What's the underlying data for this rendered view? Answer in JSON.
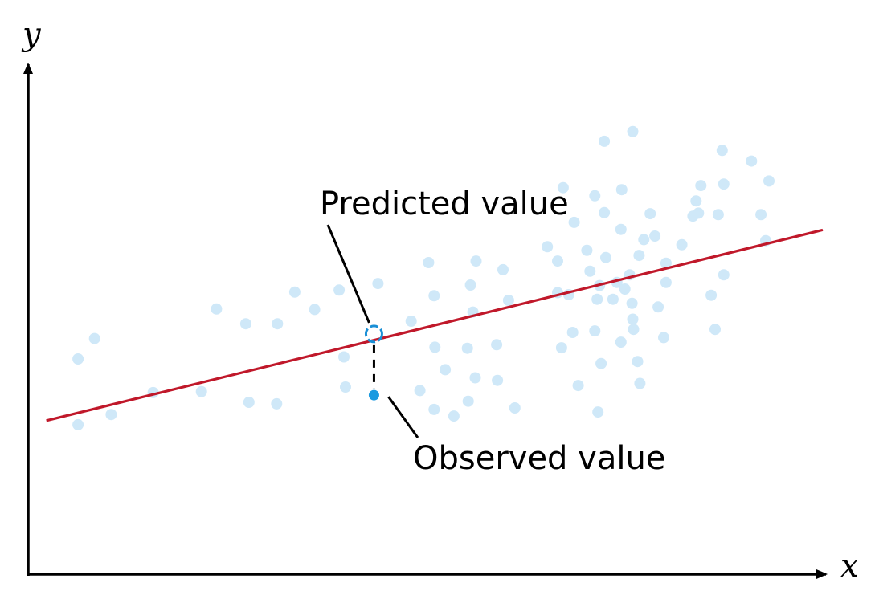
{
  "chart_data": {
    "type": "scatter",
    "title": "",
    "xlabel": "x",
    "ylabel": "y",
    "xlim": [
      0,
      100
    ],
    "ylim": [
      0,
      100
    ],
    "grid": false,
    "colors": {
      "points": "#cfe8f8",
      "fit_line": "#c0182a",
      "observed": "#1a9ae0",
      "predicted_ring": "#1a8fd6",
      "axes": "#000000"
    },
    "points": [
      {
        "x": 6.3,
        "y": 42.2
      },
      {
        "x": 6.3,
        "y": 29.3
      },
      {
        "x": 8.4,
        "y": 46.2
      },
      {
        "x": 10.5,
        "y": 31.3
      },
      {
        "x": 15.8,
        "y": 35.6
      },
      {
        "x": 21.9,
        "y": 35.8
      },
      {
        "x": 23.8,
        "y": 52.0
      },
      {
        "x": 27.5,
        "y": 49.1
      },
      {
        "x": 27.9,
        "y": 33.7
      },
      {
        "x": 31.5,
        "y": 49.1
      },
      {
        "x": 31.4,
        "y": 33.4
      },
      {
        "x": 33.7,
        "y": 55.3
      },
      {
        "x": 36.2,
        "y": 51.9
      },
      {
        "x": 39.3,
        "y": 55.7
      },
      {
        "x": 39.9,
        "y": 42.6
      },
      {
        "x": 40.1,
        "y": 36.7
      },
      {
        "x": 44.2,
        "y": 57.0
      },
      {
        "x": 48.4,
        "y": 49.6
      },
      {
        "x": 49.5,
        "y": 36.0
      },
      {
        "x": 50.6,
        "y": 61.1
      },
      {
        "x": 51.3,
        "y": 54.6
      },
      {
        "x": 51.4,
        "y": 44.5
      },
      {
        "x": 51.3,
        "y": 32.3
      },
      {
        "x": 52.7,
        "y": 40.1
      },
      {
        "x": 53.8,
        "y": 31.0
      },
      {
        "x": 55.9,
        "y": 56.7
      },
      {
        "x": 56.6,
        "y": 61.4
      },
      {
        "x": 56.2,
        "y": 51.4
      },
      {
        "x": 56.5,
        "y": 38.5
      },
      {
        "x": 55.5,
        "y": 44.3
      },
      {
        "x": 55.6,
        "y": 33.9
      },
      {
        "x": 59.2,
        "y": 45.0
      },
      {
        "x": 59.3,
        "y": 38.0
      },
      {
        "x": 60.7,
        "y": 53.7
      },
      {
        "x": 61.5,
        "y": 32.6
      },
      {
        "x": 60.0,
        "y": 59.7
      },
      {
        "x": 65.6,
        "y": 64.2
      },
      {
        "x": 66.9,
        "y": 61.4
      },
      {
        "x": 66.9,
        "y": 55.2
      },
      {
        "x": 67.4,
        "y": 44.4
      },
      {
        "x": 67.6,
        "y": 75.8
      },
      {
        "x": 68.3,
        "y": 54.8
      },
      {
        "x": 68.8,
        "y": 47.4
      },
      {
        "x": 69.0,
        "y": 69.0
      },
      {
        "x": 69.5,
        "y": 37.0
      },
      {
        "x": 70.6,
        "y": 63.5
      },
      {
        "x": 71.0,
        "y": 59.4
      },
      {
        "x": 71.6,
        "y": 74.2
      },
      {
        "x": 71.9,
        "y": 53.9
      },
      {
        "x": 71.6,
        "y": 47.7
      },
      {
        "x": 72.0,
        "y": 31.8
      },
      {
        "x": 72.4,
        "y": 41.3
      },
      {
        "x": 72.2,
        "y": 56.6
      },
      {
        "x": 72.8,
        "y": 70.9
      },
      {
        "x": 72.8,
        "y": 84.9
      },
      {
        "x": 73.0,
        "y": 62.1
      },
      {
        "x": 73.9,
        "y": 53.9
      },
      {
        "x": 74.4,
        "y": 57.2
      },
      {
        "x": 74.9,
        "y": 67.6
      },
      {
        "x": 74.9,
        "y": 45.5
      },
      {
        "x": 75.0,
        "y": 75.4
      },
      {
        "x": 75.4,
        "y": 55.9
      },
      {
        "x": 76.0,
        "y": 58.7
      },
      {
        "x": 76.3,
        "y": 53.1
      },
      {
        "x": 76.4,
        "y": 50.0
      },
      {
        "x": 76.5,
        "y": 48.0
      },
      {
        "x": 76.4,
        "y": 86.8
      },
      {
        "x": 77.0,
        "y": 41.7
      },
      {
        "x": 77.2,
        "y": 62.5
      },
      {
        "x": 77.3,
        "y": 37.4
      },
      {
        "x": 77.8,
        "y": 65.6
      },
      {
        "x": 78.6,
        "y": 70.7
      },
      {
        "x": 79.2,
        "y": 66.3
      },
      {
        "x": 79.6,
        "y": 52.4
      },
      {
        "x": 80.3,
        "y": 46.4
      },
      {
        "x": 80.6,
        "y": 61.0
      },
      {
        "x": 80.6,
        "y": 57.2
      },
      {
        "x": 82.6,
        "y": 64.6
      },
      {
        "x": 84.0,
        "y": 70.2
      },
      {
        "x": 84.4,
        "y": 73.2
      },
      {
        "x": 84.7,
        "y": 70.8
      },
      {
        "x": 85.0,
        "y": 76.2
      },
      {
        "x": 86.3,
        "y": 54.7
      },
      {
        "x": 86.8,
        "y": 48.0
      },
      {
        "x": 87.2,
        "y": 70.5
      },
      {
        "x": 87.7,
        "y": 83.1
      },
      {
        "x": 87.9,
        "y": 76.5
      },
      {
        "x": 87.9,
        "y": 58.7
      },
      {
        "x": 91.4,
        "y": 81.0
      },
      {
        "x": 92.6,
        "y": 70.5
      },
      {
        "x": 93.2,
        "y": 65.4
      },
      {
        "x": 93.6,
        "y": 77.1
      }
    ],
    "fit_line": {
      "x": [
        2.3,
        100.4
      ],
      "y": [
        30.1,
        67.5
      ]
    },
    "highlight": {
      "x": 43.7,
      "observed_y": 35.1,
      "predicted_y": 47.1
    },
    "annotations": {
      "predicted_label": "Predicted value",
      "observed_label": "Observed value"
    }
  }
}
